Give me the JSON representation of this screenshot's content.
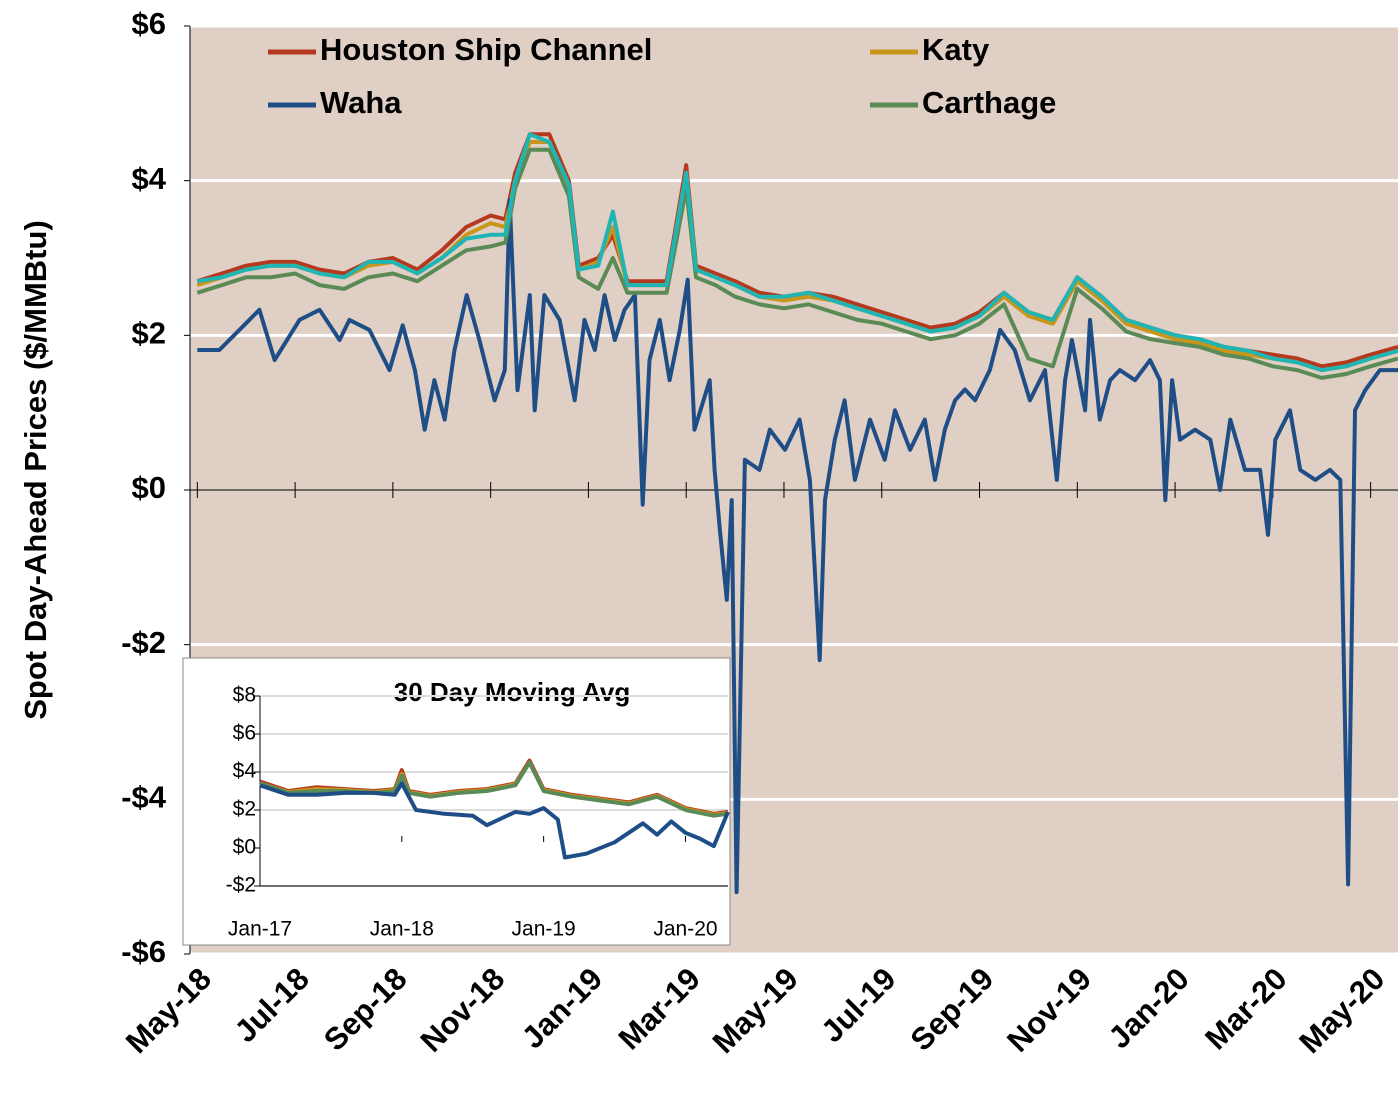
{
  "chart_data": [
    {
      "type": "line",
      "y_label": "Spot Day-Ahead Prices ($/MMBtu)",
      "xlim": [
        -0.15,
        24.56
      ],
      "xticks": [
        {
          "value": 0,
          "label": "May-18"
        },
        {
          "value": 2,
          "label": "Jul-18"
        },
        {
          "value": 4,
          "label": "Sep-18"
        },
        {
          "value": 6,
          "label": "Nov-18"
        },
        {
          "value": 8,
          "label": "Jan-19"
        },
        {
          "value": 10,
          "label": "Mar-19"
        },
        {
          "value": 12,
          "label": "May-19"
        },
        {
          "value": 14,
          "label": "Jul-19"
        },
        {
          "value": 16,
          "label": "Sep-19"
        },
        {
          "value": 18,
          "label": "Nov-19"
        },
        {
          "value": 20,
          "label": "Jan-20"
        },
        {
          "value": 22,
          "label": "Mar-20"
        },
        {
          "value": 24,
          "label": "May-20"
        }
      ],
      "ylim": [
        -6,
        6
      ],
      "yticks": [
        {
          "value": -6,
          "label": "-$6"
        },
        {
          "value": -4,
          "label": "-$4"
        },
        {
          "value": -2,
          "label": "-$2"
        },
        {
          "value": 0,
          "label": "$0"
        },
        {
          "value": 2,
          "label": "$2"
        },
        {
          "value": 4,
          "label": "$4"
        },
        {
          "value": 6,
          "label": "$6"
        }
      ],
      "grid": true,
      "legend": "top",
      "background": "#e0cfc4",
      "series": [
        {
          "name": "Houston Ship Channel",
          "color": "#b5391e",
          "x": [
            0,
            0.5,
            1,
            1.5,
            2,
            2.5,
            3,
            3.5,
            4,
            4.5,
            5,
            5.5,
            6,
            6.3,
            6.5,
            6.8,
            7.2,
            7.6,
            7.8,
            8.2,
            8.5,
            8.8,
            9.2,
            9.6,
            10,
            10.2,
            10.6,
            11,
            11.5,
            12,
            12.5,
            13,
            13.5,
            14,
            14.5,
            15,
            15.5,
            16,
            16.5,
            17,
            17.5,
            18,
            18.5,
            19,
            19.5,
            20,
            20.5,
            21,
            21.5,
            22,
            22.5,
            23,
            23.5,
            24,
            24.56
          ],
          "values": [
            2.7,
            2.8,
            2.9,
            2.95,
            2.95,
            2.85,
            2.8,
            2.95,
            3.0,
            2.85,
            3.1,
            3.4,
            3.55,
            3.5,
            4.1,
            4.6,
            4.6,
            4.0,
            2.9,
            3.0,
            3.3,
            2.7,
            2.7,
            2.7,
            4.2,
            2.9,
            2.8,
            2.7,
            2.55,
            2.5,
            2.55,
            2.5,
            2.4,
            2.3,
            2.2,
            2.1,
            2.15,
            2.3,
            2.55,
            2.3,
            2.2,
            2.75,
            2.5,
            2.2,
            2.1,
            2.0,
            1.95,
            1.85,
            1.8,
            1.75,
            1.7,
            1.6,
            1.65,
            1.75,
            1.85
          ]
        },
        {
          "name": "Katy",
          "color": "#c8961a",
          "x": [
            0,
            0.5,
            1,
            1.5,
            2,
            2.5,
            3,
            3.5,
            4,
            4.5,
            5,
            5.5,
            6,
            6.3,
            6.5,
            6.8,
            7.2,
            7.6,
            7.8,
            8.2,
            8.5,
            8.8,
            9.2,
            9.6,
            10,
            10.2,
            10.6,
            11,
            11.5,
            12,
            12.5,
            13,
            13.5,
            14,
            14.5,
            15,
            15.5,
            16,
            16.5,
            17,
            17.5,
            18,
            18.5,
            19,
            19.5,
            20,
            20.5,
            21,
            21.5,
            22,
            22.5,
            23,
            23.5,
            24,
            24.56
          ],
          "values": [
            2.65,
            2.75,
            2.85,
            2.9,
            2.9,
            2.8,
            2.75,
            2.9,
            2.95,
            2.8,
            3.0,
            3.3,
            3.45,
            3.4,
            4.0,
            4.5,
            4.5,
            3.9,
            2.85,
            2.95,
            3.4,
            2.65,
            2.65,
            2.65,
            4.1,
            2.85,
            2.75,
            2.65,
            2.5,
            2.45,
            2.5,
            2.45,
            2.35,
            2.25,
            2.15,
            2.05,
            2.1,
            2.25,
            2.5,
            2.25,
            2.15,
            2.7,
            2.45,
            2.15,
            2.05,
            1.95,
            1.9,
            1.8,
            1.75,
            1.7,
            1.65,
            1.55,
            1.6,
            1.7,
            1.8
          ]
        },
        {
          "name": "Waha",
          "color": "#1f4e87",
          "x": [
            0,
            0.45,
            0.86,
            1.27,
            1.58,
            2.09,
            2.5,
            2.91,
            3.11,
            3.52,
            3.93,
            4.2,
            4.45,
            4.65,
            4.85,
            5.06,
            5.26,
            5.51,
            5.77,
            6.08,
            6.29,
            6.39,
            6.55,
            6.8,
            6.9,
            7.1,
            7.41,
            7.72,
            7.92,
            8.13,
            8.33,
            8.54,
            8.74,
            8.95,
            9.11,
            9.25,
            9.46,
            9.66,
            9.87,
            10.03,
            10.17,
            10.48,
            10.58,
            10.69,
            10.83,
            10.93,
            11.03,
            11.2,
            11.5,
            11.71,
            12.02,
            12.32,
            12.53,
            12.73,
            12.84,
            13.04,
            13.24,
            13.45,
            13.76,
            14.06,
            14.27,
            14.58,
            14.88,
            15.09,
            15.29,
            15.5,
            15.7,
            15.91,
            16.21,
            16.42,
            16.72,
            17.03,
            17.34,
            17.58,
            17.75,
            17.89,
            18.16,
            18.26,
            18.46,
            18.67,
            18.87,
            19.18,
            19.49,
            19.69,
            19.8,
            19.94,
            20.1,
            20.41,
            20.72,
            20.92,
            21.13,
            21.43,
            21.74,
            21.9,
            22.05,
            22.35,
            22.56,
            22.87,
            23.17,
            23.38,
            23.54,
            23.68,
            23.89,
            24.19,
            24.56
          ],
          "values": [
            1.81,
            1.81,
            2.07,
            2.33,
            1.68,
            2.2,
            2.33,
            1.94,
            2.2,
            2.07,
            1.55,
            2.13,
            1.55,
            0.78,
            1.42,
            0.91,
            1.81,
            2.52,
            1.94,
            1.16,
            1.55,
            3.75,
            1.29,
            2.52,
            1.03,
            2.52,
            2.2,
            1.16,
            2.2,
            1.81,
            2.52,
            1.94,
            2.33,
            2.52,
            -0.19,
            1.68,
            2.2,
            1.42,
            2.07,
            2.72,
            0.78,
            1.42,
            0.26,
            -0.52,
            -1.42,
            -0.13,
            -5.2,
            0.39,
            0.26,
            0.78,
            0.52,
            0.91,
            0.13,
            -2.2,
            -0.13,
            0.65,
            1.16,
            0.13,
            0.91,
            0.39,
            1.03,
            0.52,
            0.91,
            0.13,
            0.78,
            1.16,
            1.3,
            1.16,
            1.55,
            2.07,
            1.81,
            1.16,
            1.55,
            0.13,
            1.42,
            1.94,
            1.03,
            2.2,
            0.91,
            1.42,
            1.55,
            1.42,
            1.68,
            1.42,
            -0.13,
            1.42,
            0.65,
            0.78,
            0.65,
            0.0,
            0.91,
            0.26,
            0.26,
            -0.58,
            0.65,
            1.03,
            0.26,
            0.13,
            0.26,
            0.13,
            -5.1,
            1.03,
            1.29,
            1.55,
            1.55
          ]
        },
        {
          "name": "Carthage",
          "color": "#5a8a55",
          "x": [
            0,
            0.5,
            1,
            1.5,
            2,
            2.5,
            3,
            3.5,
            4,
            4.5,
            5,
            5.5,
            6,
            6.3,
            6.5,
            6.8,
            7.2,
            7.6,
            7.8,
            8.2,
            8.5,
            8.8,
            9.2,
            9.6,
            10,
            10.2,
            10.6,
            11,
            11.5,
            12,
            12.5,
            13,
            13.5,
            14,
            14.5,
            15,
            15.5,
            16,
            16.5,
            17,
            17.5,
            18,
            18.5,
            19,
            19.5,
            20,
            20.5,
            21,
            21.5,
            22,
            22.5,
            23,
            23.5,
            24,
            24.56
          ],
          "values": [
            2.55,
            2.65,
            2.75,
            2.75,
            2.8,
            2.65,
            2.6,
            2.75,
            2.8,
            2.7,
            2.9,
            3.1,
            3.15,
            3.2,
            3.9,
            4.4,
            4.4,
            3.8,
            2.75,
            2.6,
            3.0,
            2.55,
            2.55,
            2.55,
            3.9,
            2.75,
            2.65,
            2.5,
            2.4,
            2.35,
            2.4,
            2.3,
            2.2,
            2.15,
            2.05,
            1.95,
            2.0,
            2.15,
            2.4,
            1.7,
            1.6,
            2.6,
            2.35,
            2.05,
            1.95,
            1.9,
            1.85,
            1.75,
            1.7,
            1.6,
            1.55,
            1.45,
            1.5,
            1.6,
            1.7
          ]
        },
        {
          "color": "#1fb5b5",
          "x": [
            0,
            0.5,
            1,
            1.5,
            2,
            2.5,
            3,
            3.5,
            4,
            4.5,
            5,
            5.5,
            6,
            6.3,
            6.5,
            6.8,
            7.2,
            7.6,
            7.8,
            8.2,
            8.5,
            8.8,
            9.2,
            9.6,
            10,
            10.2,
            10.6,
            11,
            11.5,
            12,
            12.5,
            13,
            13.5,
            14,
            14.5,
            15,
            15.5,
            16,
            16.5,
            17,
            17.5,
            18,
            18.5,
            19,
            19.5,
            20,
            20.5,
            21,
            21.5,
            22,
            22.5,
            23,
            23.5,
            24,
            24.56
          ],
          "values": [
            2.7,
            2.75,
            2.85,
            2.9,
            2.9,
            2.8,
            2.75,
            2.95,
            2.95,
            2.8,
            3.0,
            3.25,
            3.3,
            3.3,
            4.0,
            4.6,
            4.5,
            3.95,
            2.85,
            2.9,
            3.6,
            2.65,
            2.65,
            2.65,
            4.1,
            2.85,
            2.75,
            2.65,
            2.5,
            2.5,
            2.55,
            2.45,
            2.35,
            2.25,
            2.15,
            2.05,
            2.1,
            2.25,
            2.55,
            2.3,
            2.2,
            2.75,
            2.5,
            2.2,
            2.1,
            2.0,
            1.95,
            1.85,
            1.8,
            1.7,
            1.65,
            1.55,
            1.6,
            1.7,
            1.8
          ]
        }
      ]
    },
    {
      "type": "line",
      "title": "30 Day Moving Avg",
      "xlim": [
        0,
        3.3
      ],
      "xticks": [
        {
          "value": 0,
          "label": "Jan-17"
        },
        {
          "value": 1,
          "label": "Jan-18"
        },
        {
          "value": 2,
          "label": "Jan-19"
        },
        {
          "value": 3,
          "label": "Jan-20"
        }
      ],
      "ylim": [
        -2,
        8
      ],
      "yticks": [
        {
          "value": -2,
          "label": "-$2"
        },
        {
          "value": 0,
          "label": "$0"
        },
        {
          "value": 2,
          "label": "$2"
        },
        {
          "value": 4,
          "label": "$4"
        },
        {
          "value": 6,
          "label": "$6"
        },
        {
          "value": 8,
          "label": "$8"
        }
      ],
      "grid": true,
      "series": [
        {
          "color": "#b5391e",
          "x": [
            0,
            0.2,
            0.4,
            0.6,
            0.8,
            0.95,
            1.0,
            1.05,
            1.2,
            1.4,
            1.6,
            1.8,
            1.9,
            2.0,
            2.2,
            2.4,
            2.6,
            2.8,
            3.0,
            3.2,
            3.3
          ],
          "values": [
            3.5,
            3.0,
            3.2,
            3.1,
            3.0,
            3.1,
            4.1,
            3.0,
            2.8,
            3.0,
            3.1,
            3.4,
            4.6,
            3.1,
            2.8,
            2.6,
            2.4,
            2.8,
            2.1,
            1.8,
            1.9
          ]
        },
        {
          "color": "#c8961a",
          "x": [
            0,
            0.2,
            0.4,
            0.6,
            0.8,
            0.95,
            1.0,
            1.05,
            1.2,
            1.4,
            1.6,
            1.8,
            1.9,
            2.0,
            2.2,
            2.4,
            2.6,
            2.8,
            3.0,
            3.2,
            3.3
          ],
          "values": [
            3.4,
            2.95,
            3.1,
            3.05,
            2.95,
            3.05,
            3.9,
            2.95,
            2.75,
            2.95,
            3.05,
            3.35,
            4.5,
            3.05,
            2.75,
            2.55,
            2.35,
            2.75,
            2.05,
            1.75,
            1.85
          ]
        },
        {
          "color": "#5a8a55",
          "x": [
            0,
            0.2,
            0.4,
            0.6,
            0.8,
            0.95,
            1.0,
            1.05,
            1.2,
            1.4,
            1.6,
            1.8,
            1.9,
            2.0,
            2.2,
            2.4,
            2.6,
            2.8,
            3.0,
            3.2,
            3.3
          ],
          "values": [
            3.4,
            2.9,
            3.0,
            3.0,
            2.9,
            3.0,
            3.8,
            2.9,
            2.7,
            2.9,
            3.0,
            3.3,
            4.5,
            3.0,
            2.7,
            2.5,
            2.3,
            2.7,
            2.0,
            1.7,
            1.8
          ]
        },
        {
          "color": "#1f4e87",
          "x": [
            0,
            0.2,
            0.4,
            0.6,
            0.8,
            0.95,
            1.0,
            1.1,
            1.3,
            1.5,
            1.6,
            1.8,
            1.9,
            2.0,
            2.1,
            2.15,
            2.3,
            2.5,
            2.7,
            2.8,
            2.9,
            3.0,
            3.1,
            3.2,
            3.3
          ],
          "values": [
            3.3,
            2.8,
            2.8,
            2.9,
            2.9,
            2.8,
            3.4,
            2.0,
            1.8,
            1.7,
            1.2,
            1.9,
            1.8,
            2.1,
            1.5,
            -0.5,
            -0.3,
            0.3,
            1.3,
            0.7,
            1.4,
            0.8,
            0.5,
            0.1,
            1.9
          ]
        }
      ]
    }
  ]
}
